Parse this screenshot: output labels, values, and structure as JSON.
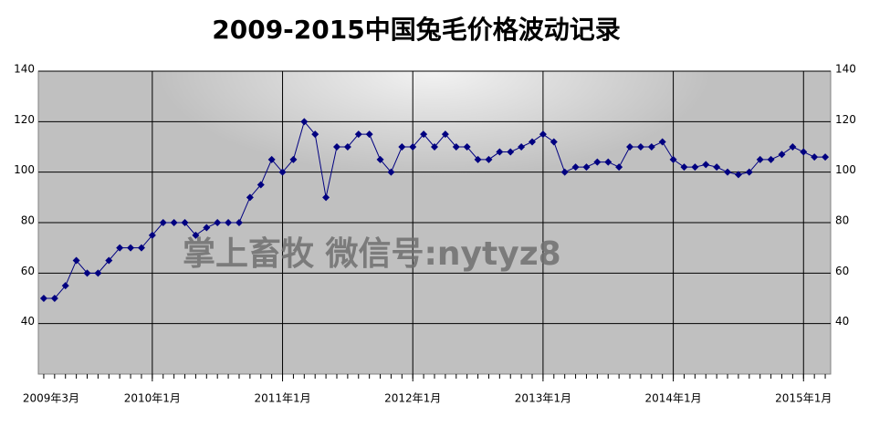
{
  "chart_data": {
    "type": "line",
    "title": "2009-2015中国兔毛价格波动记录",
    "watermark": "掌上畜牧 微信号:nytyz8",
    "categories": [
      "2009年3月",
      null,
      null,
      null,
      null,
      null,
      null,
      null,
      null,
      null,
      "2010年1月",
      null,
      null,
      null,
      null,
      null,
      null,
      null,
      null,
      null,
      null,
      null,
      "2011年1月",
      null,
      null,
      null,
      null,
      null,
      null,
      null,
      null,
      null,
      null,
      null,
      "2012年1月",
      null,
      null,
      null,
      null,
      null,
      null,
      null,
      null,
      null,
      null,
      null,
      "2013年1月",
      null,
      null,
      null,
      null,
      null,
      null,
      null,
      null,
      null,
      null,
      null,
      "2014年1月",
      null,
      null,
      null,
      null,
      null,
      null,
      null,
      null,
      null,
      null,
      null,
      "2015年1月",
      null,
      null
    ],
    "series": [
      {
        "name": null,
        "color": "#000080",
        "values": [
          50,
          50,
          55,
          65,
          60,
          60,
          65,
          70,
          70,
          70,
          75,
          80,
          80,
          80,
          75,
          78,
          80,
          80,
          80,
          90,
          95,
          105,
          100,
          105,
          120,
          115,
          90,
          110,
          110,
          115,
          115,
          105,
          100,
          110,
          110,
          115,
          110,
          115,
          110,
          110,
          105,
          105,
          108,
          108,
          110,
          112,
          115,
          112,
          100,
          102,
          102,
          104,
          104,
          102,
          110,
          110,
          110,
          112,
          105,
          102,
          102,
          103,
          102,
          100,
          99,
          100,
          105,
          105,
          107,
          110,
          108,
          106,
          106
        ]
      }
    ],
    "ylim": [
      20,
      140
    ],
    "yticks": [
      40,
      60,
      80,
      100,
      120,
      140
    ],
    "grid": true,
    "background": "#c0c0c0"
  }
}
